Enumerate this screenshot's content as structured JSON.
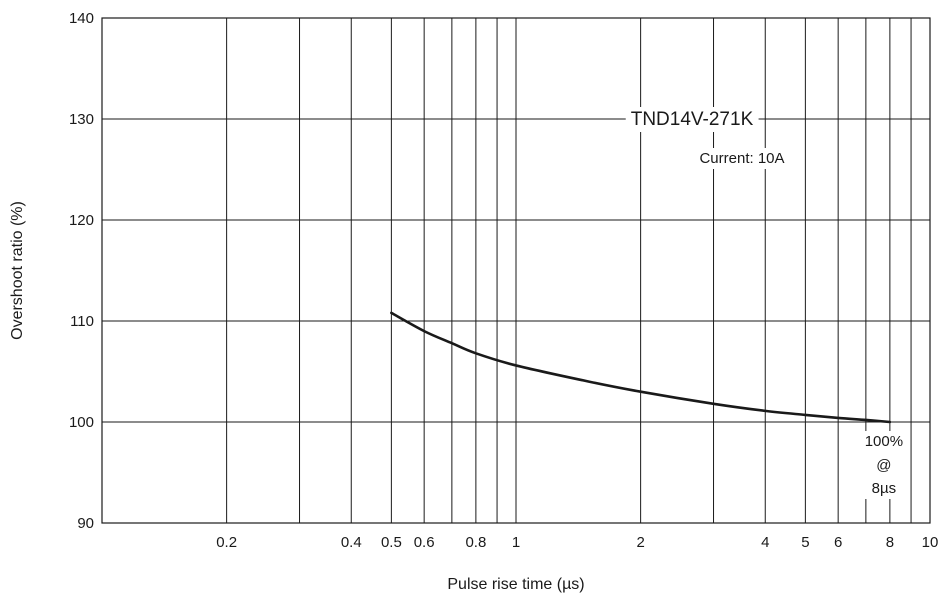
{
  "chart_data": {
    "type": "line",
    "xscale": "log",
    "xlabel": "Pulse rise time (µs)",
    "ylabel": "Overshoot ratio (%)",
    "xlim": [
      0.1,
      10
    ],
    "ylim": [
      90,
      140
    ],
    "x_ticks": [
      0.2,
      0.4,
      0.5,
      0.6,
      0.8,
      1,
      2,
      4,
      5,
      6,
      8,
      10
    ],
    "x_tick_labels": [
      "0.2",
      "0.4",
      "0.5",
      "0.6",
      "0.8",
      "1",
      "2",
      "4",
      "5",
      "6",
      "8",
      "10"
    ],
    "x_gridlines": [
      0.2,
      0.3,
      0.4,
      0.5,
      0.6,
      0.7,
      0.8,
      0.9,
      1,
      2,
      3,
      4,
      5,
      6,
      7,
      8,
      9,
      10
    ],
    "y_ticks": [
      90,
      100,
      110,
      120,
      130,
      140
    ],
    "y_tick_labels": [
      "90",
      "100",
      "110",
      "120",
      "130",
      "140"
    ],
    "grid": true,
    "series": [
      {
        "name": "TND14V-271K",
        "color": "#1a1a1a",
        "x": [
          0.5,
          0.6,
          0.7,
          0.8,
          1,
          1.5,
          2,
          3,
          4,
          5,
          6,
          7,
          8
        ],
        "y": [
          110.8,
          109.0,
          107.8,
          106.8,
          105.6,
          104.0,
          103.0,
          101.8,
          101.1,
          100.7,
          100.4,
          100.2,
          100.0
        ]
      }
    ],
    "annotations": {
      "series_label": "TND14V-271K",
      "condition": "Current: 10A",
      "reference_lines": [
        "100%",
        "@",
        "8µs"
      ]
    }
  }
}
